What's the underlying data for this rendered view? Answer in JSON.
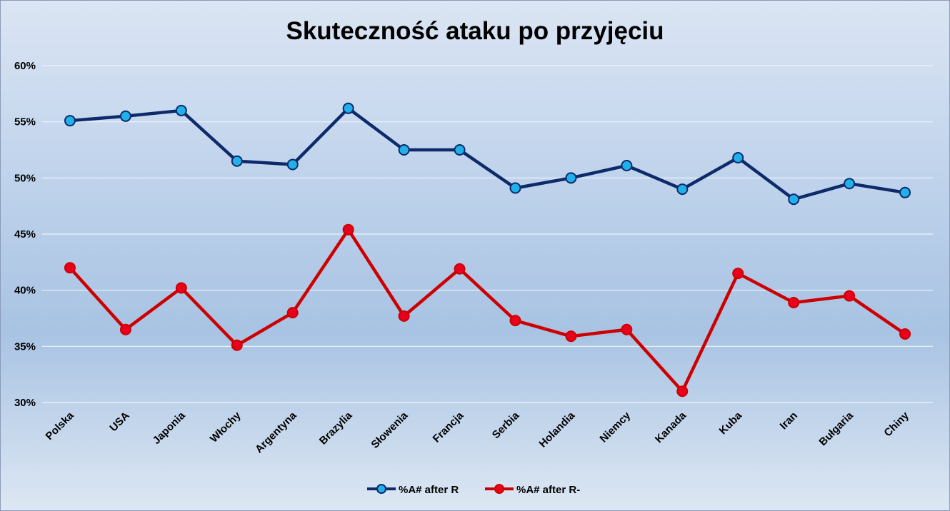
{
  "chart_data": {
    "type": "line",
    "title": "Skuteczność ataku po przyjęciu",
    "categories": [
      "Polska",
      "USA",
      "Japonia",
      "Włochy",
      "Argentyna",
      "Brazylia",
      "Słowenia",
      "Francja",
      "Serbia",
      "Holandia",
      "Niemcy",
      "Kanada",
      "Kuba",
      "Iran",
      "Bułgaria",
      "Chiny"
    ],
    "series": [
      {
        "name": "%A# after R",
        "values": [
          55.1,
          55.5,
          56.0,
          51.5,
          51.2,
          56.2,
          52.5,
          52.5,
          49.1,
          50.0,
          51.1,
          49.0,
          51.8,
          48.1,
          49.5,
          48.7
        ],
        "line_color": "#0d2b6b",
        "marker_color": "#20b0ea"
      },
      {
        "name": "%A# after R-",
        "values": [
          42.0,
          36.5,
          40.2,
          35.1,
          38.0,
          45.4,
          37.7,
          41.9,
          37.3,
          35.9,
          36.5,
          31.0,
          41.5,
          38.9,
          39.5,
          36.1
        ],
        "line_color": "#cc0000",
        "marker_color": "#e8001c"
      }
    ],
    "ylim": [
      30,
      60
    ],
    "yticks": [
      "30%",
      "35%",
      "40%",
      "45%",
      "50%",
      "55%",
      "60%"
    ],
    "ytick_values": [
      30,
      35,
      40,
      45,
      50,
      55,
      60
    ],
    "grid": true,
    "legend_position": "bottom-center"
  }
}
